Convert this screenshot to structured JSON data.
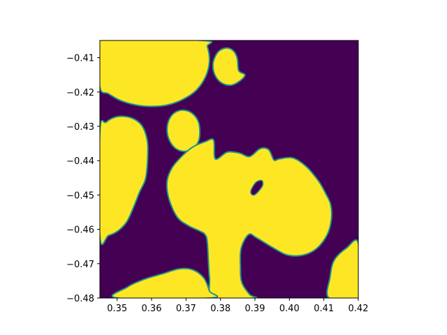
{
  "chart_data": {
    "type": "heatmap",
    "title": "",
    "xlabel": "",
    "ylabel": "",
    "xlim": [
      0.345,
      0.42
    ],
    "ylim": [
      -0.48,
      -0.405
    ],
    "xticks": [
      0.35,
      0.36,
      0.37,
      0.38,
      0.39,
      0.4,
      0.41,
      0.42
    ],
    "xtick_labels": [
      "0.35",
      "0.36",
      "0.37",
      "0.38",
      "0.39",
      "0.40",
      "0.41",
      "0.42"
    ],
    "yticks": [
      -0.41,
      -0.42,
      -0.43,
      -0.44,
      -0.45,
      -0.46,
      -0.47,
      -0.48
    ],
    "ytick_labels": [
      "−0.41",
      "−0.42",
      "−0.43",
      "−0.44",
      "−0.45",
      "−0.46",
      "−0.47",
      "−0.48"
    ],
    "colormap": "viridis",
    "colors": {
      "low": "#440154",
      "high": "#fde725",
      "interface": "#21918c"
    },
    "grid": false,
    "legend": "none",
    "regions": [
      {
        "name": "top-left-blob",
        "points": [
          [
            0.345,
            -0.4185
          ],
          [
            0.3475,
            -0.4205
          ],
          [
            0.351,
            -0.4225
          ],
          [
            0.3555,
            -0.4238
          ],
          [
            0.36,
            -0.4242
          ],
          [
            0.3645,
            -0.4238
          ],
          [
            0.369,
            -0.4222
          ],
          [
            0.373,
            -0.4195
          ],
          [
            0.3757,
            -0.4155
          ],
          [
            0.3768,
            -0.411
          ],
          [
            0.3762,
            -0.4068
          ],
          [
            0.3748,
            -0.405
          ],
          [
            0.345,
            -0.405
          ]
        ]
      },
      {
        "name": "top-circle",
        "points": [
          [
            0.3853,
            -0.4138
          ],
          [
            0.3849,
            -0.4103
          ],
          [
            0.3839,
            -0.4082
          ],
          [
            0.3821,
            -0.4072
          ],
          [
            0.3799,
            -0.4078
          ],
          [
            0.3784,
            -0.4098
          ],
          [
            0.3778,
            -0.4124
          ],
          [
            0.3785,
            -0.4153
          ],
          [
            0.3804,
            -0.4174
          ],
          [
            0.3831,
            -0.418
          ],
          [
            0.3856,
            -0.4168
          ],
          [
            0.3871,
            -0.415
          ]
        ]
      },
      {
        "name": "small-circle",
        "points": [
          [
            0.374,
            -0.4318
          ],
          [
            0.3736,
            -0.4287
          ],
          [
            0.3719,
            -0.4263
          ],
          [
            0.3694,
            -0.4253
          ],
          [
            0.3669,
            -0.4259
          ],
          [
            0.3651,
            -0.428
          ],
          [
            0.3645,
            -0.431
          ],
          [
            0.3651,
            -0.4339
          ],
          [
            0.3668,
            -0.4363
          ],
          [
            0.3694,
            -0.4373
          ],
          [
            0.372,
            -0.4365
          ],
          [
            0.3736,
            -0.4344
          ]
        ]
      },
      {
        "name": "left-blob",
        "points": [
          [
            0.345,
            -0.4315
          ],
          [
            0.3468,
            -0.4288
          ],
          [
            0.35,
            -0.4272
          ],
          [
            0.354,
            -0.4275
          ],
          [
            0.3572,
            -0.4298
          ],
          [
            0.3588,
            -0.4345
          ],
          [
            0.3588,
            -0.4405
          ],
          [
            0.3582,
            -0.4455
          ],
          [
            0.3565,
            -0.4492
          ],
          [
            0.3548,
            -0.4535
          ],
          [
            0.3528,
            -0.4578
          ],
          [
            0.3502,
            -0.4605
          ],
          [
            0.3475,
            -0.4618
          ],
          [
            0.345,
            -0.4622
          ]
        ]
      },
      {
        "name": "central-blob",
        "points": [
          [
            0.3785,
            -0.4395
          ],
          [
            0.382,
            -0.4375
          ],
          [
            0.3855,
            -0.4378
          ],
          [
            0.3885,
            -0.4388
          ],
          [
            0.3915,
            -0.4365
          ],
          [
            0.394,
            -0.4368
          ],
          [
            0.3955,
            -0.4398
          ],
          [
            0.397,
            -0.4395
          ],
          [
            0.401,
            -0.4392
          ],
          [
            0.405,
            -0.4418
          ],
          [
            0.4085,
            -0.446
          ],
          [
            0.4105,
            -0.4495
          ],
          [
            0.412,
            -0.4528
          ],
          [
            0.4122,
            -0.457
          ],
          [
            0.411,
            -0.4615
          ],
          [
            0.408,
            -0.4655
          ],
          [
            0.404,
            -0.4675
          ],
          [
            0.3995,
            -0.4675
          ],
          [
            0.3955,
            -0.4655
          ],
          [
            0.3905,
            -0.4625
          ],
          [
            0.3882,
            -0.4615
          ],
          [
            0.386,
            -0.4655
          ],
          [
            0.3858,
            -0.471
          ],
          [
            0.3862,
            -0.4755
          ],
          [
            0.3885,
            -0.479
          ],
          [
            0.39,
            -0.48
          ],
          [
            0.378,
            -0.48
          ],
          [
            0.3768,
            -0.474
          ],
          [
            0.3762,
            -0.464
          ],
          [
            0.3755,
            -0.4615
          ],
          [
            0.374,
            -0.4605
          ],
          [
            0.3708,
            -0.459
          ],
          [
            0.3675,
            -0.4565
          ],
          [
            0.365,
            -0.451
          ],
          [
            0.3645,
            -0.446
          ],
          [
            0.366,
            -0.442
          ],
          [
            0.369,
            -0.4385
          ],
          [
            0.372,
            -0.436
          ],
          [
            0.3755,
            -0.4345
          ],
          [
            0.378,
            -0.434
          ]
        ]
      },
      {
        "name": "bottom-left-blob",
        "points": [
          [
            0.35,
            -0.48
          ],
          [
            0.353,
            -0.4768
          ],
          [
            0.358,
            -0.4745
          ],
          [
            0.363,
            -0.473
          ],
          [
            0.368,
            -0.4715
          ],
          [
            0.372,
            -0.4718
          ],
          [
            0.3752,
            -0.4742
          ],
          [
            0.3768,
            -0.478
          ],
          [
            0.3772,
            -0.48
          ]
        ]
      },
      {
        "name": "bottom-right-blob",
        "points": [
          [
            0.42,
            -0.464
          ],
          [
            0.4165,
            -0.4655
          ],
          [
            0.413,
            -0.469
          ],
          [
            0.4118,
            -0.474
          ],
          [
            0.4115,
            -0.48
          ],
          [
            0.42,
            -0.48
          ]
        ]
      }
    ],
    "holes": [
      {
        "name": "central-hole",
        "points": [
          [
            0.3903,
            -0.4463
          ],
          [
            0.392,
            -0.4458
          ],
          [
            0.3922,
            -0.4473
          ],
          [
            0.3905,
            -0.4495
          ],
          [
            0.3893,
            -0.45
          ],
          [
            0.3888,
            -0.4488
          ]
        ]
      }
    ]
  }
}
